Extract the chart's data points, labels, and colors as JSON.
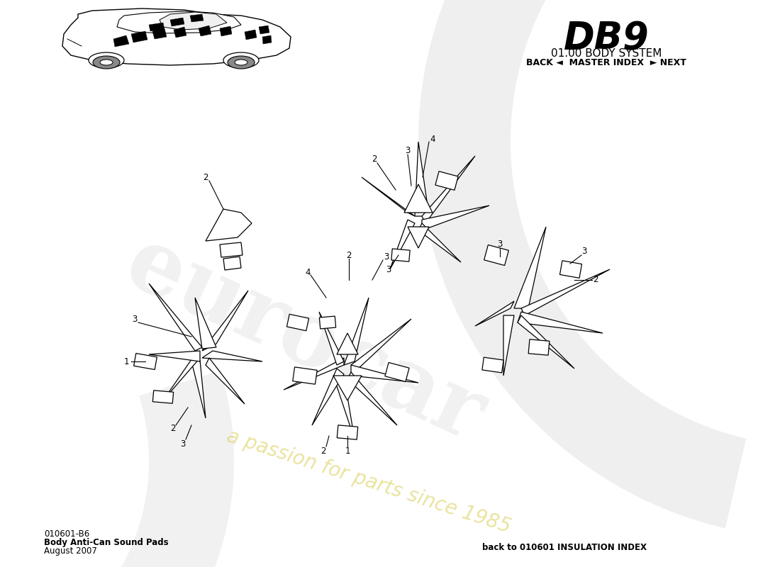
{
  "bg_color": "#ffffff",
  "title_db9": "DB9",
  "title_body": "01.00 BODY SYSTEM",
  "nav_text": "BACK ◄  MASTER INDEX  ► NEXT",
  "part_number": "010601-B6",
  "part_name": "Body Anti-Can Sound Pads",
  "date": "August 2007",
  "footer_right": "back to 010601 INSULATION INDEX",
  "watermark1": "eurocar",
  "watermark2": "a passion for parts since 1985"
}
